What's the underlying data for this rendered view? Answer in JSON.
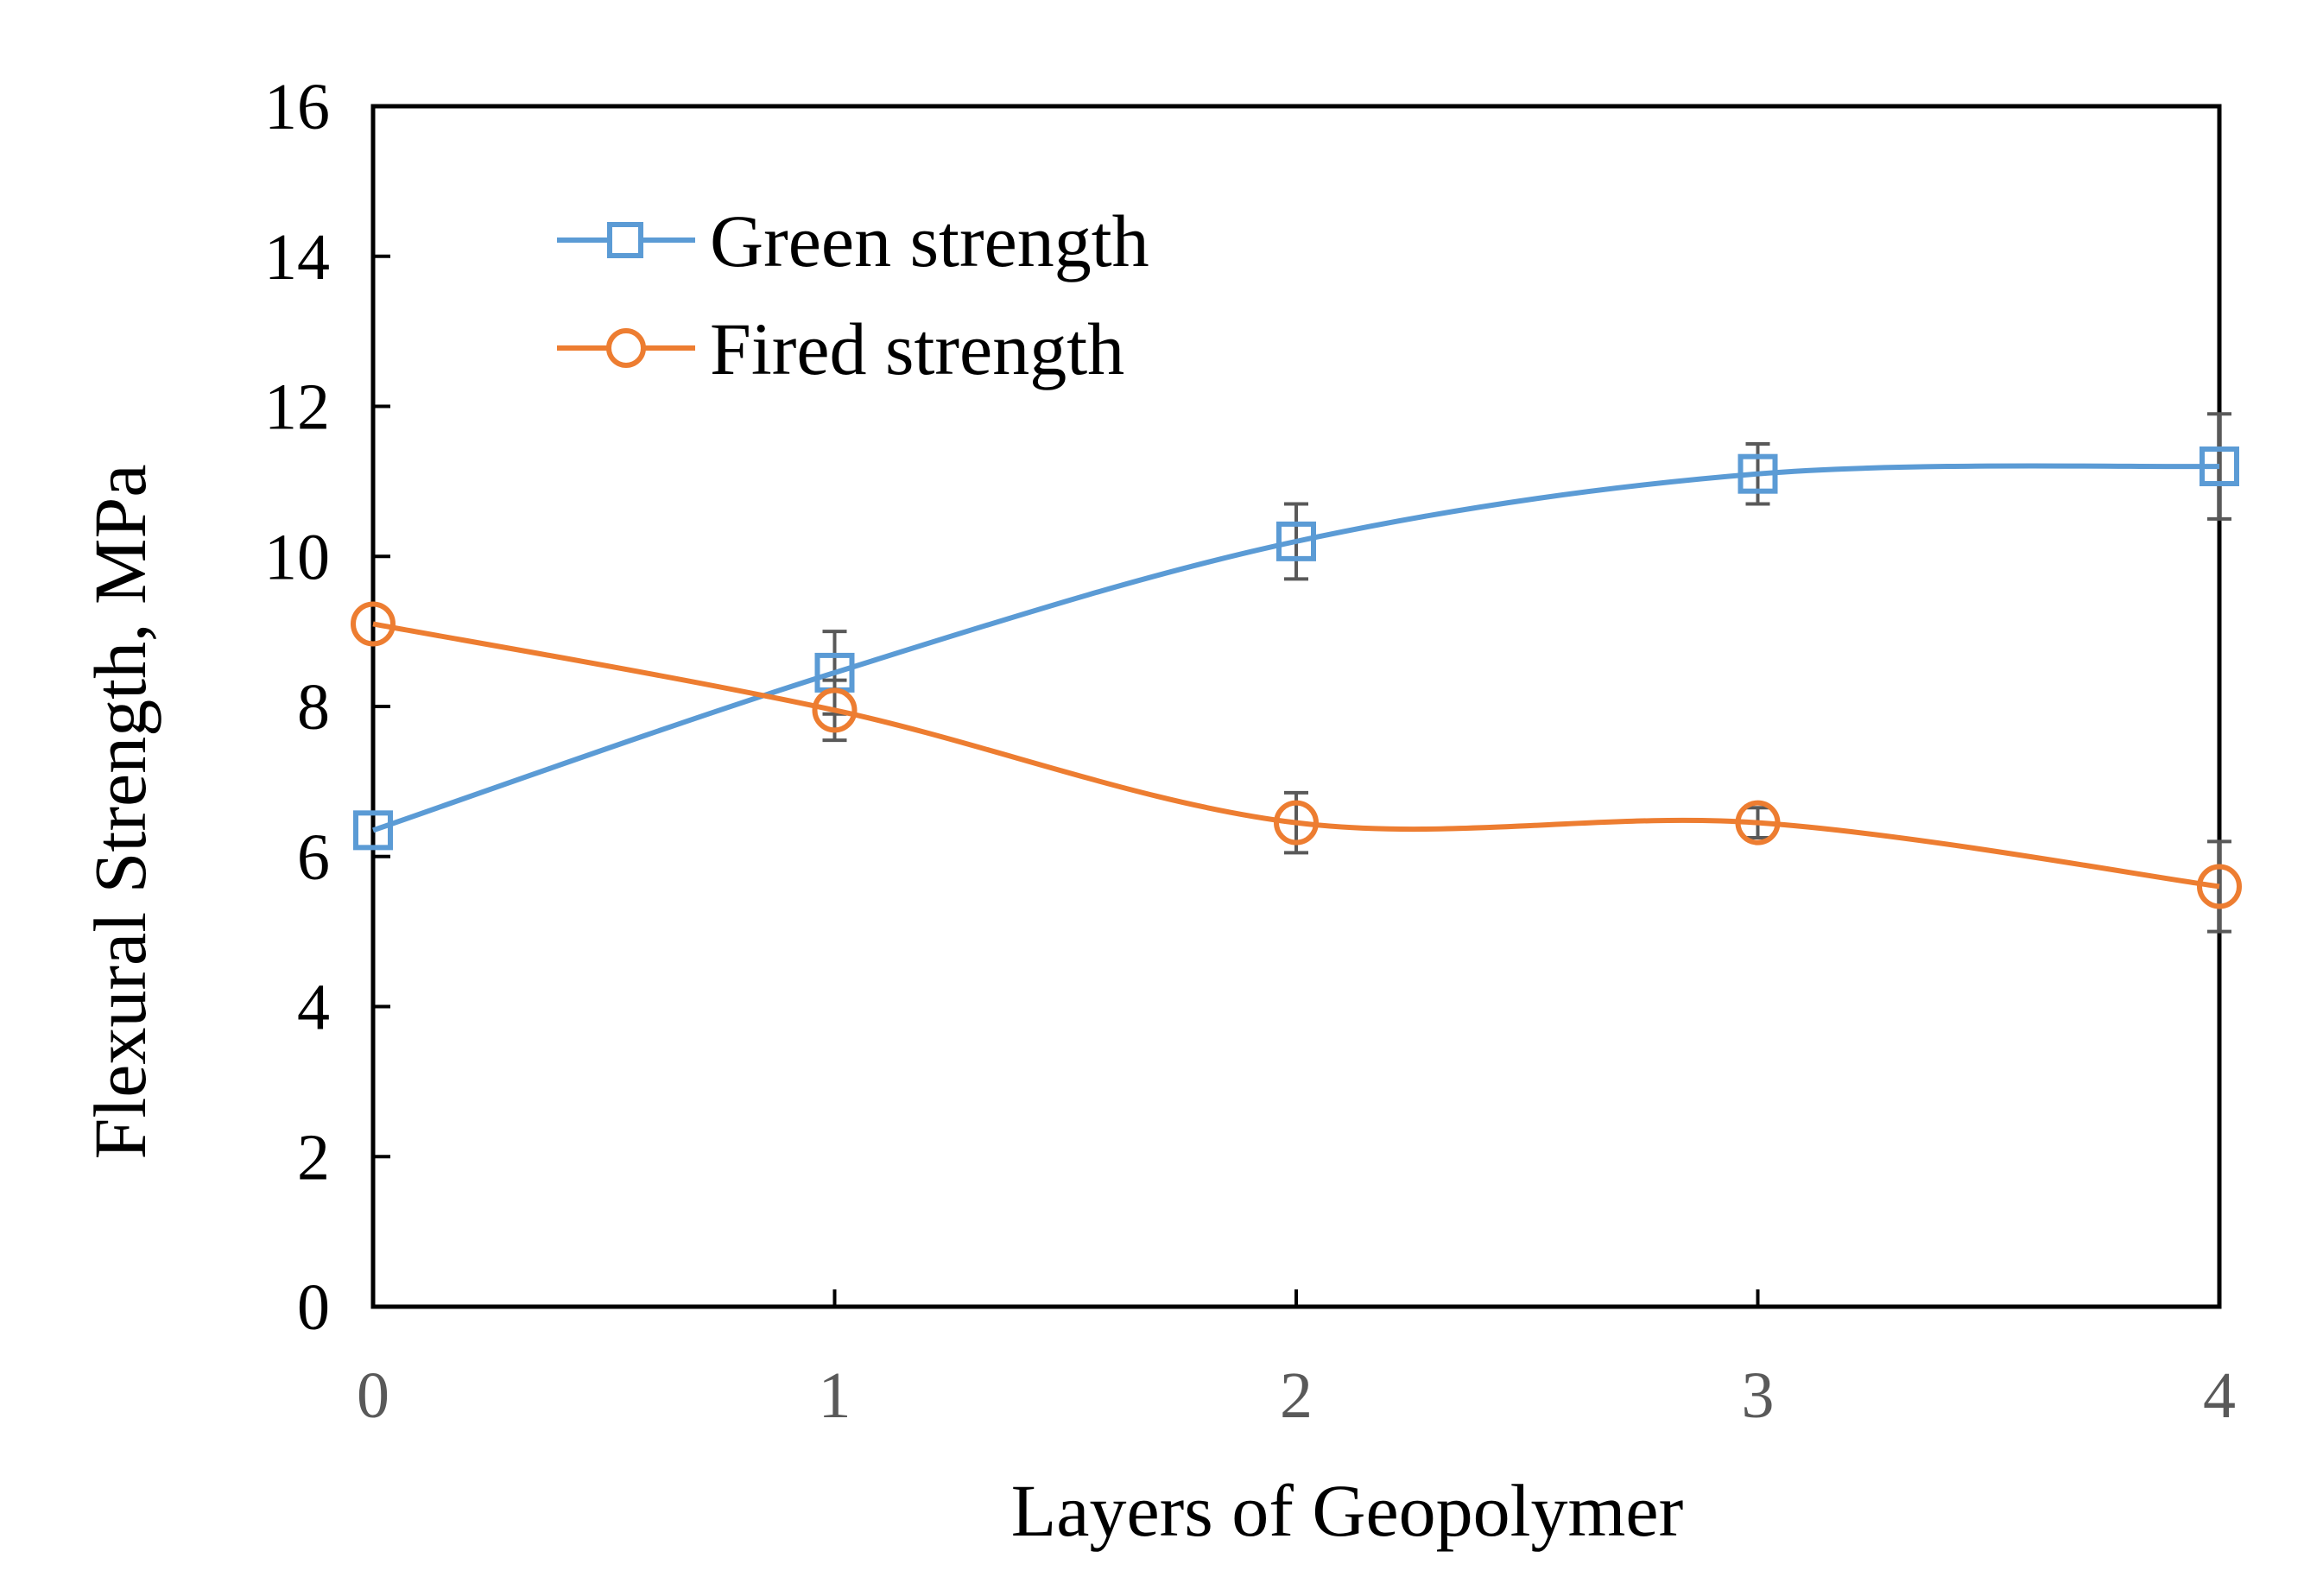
{
  "chart_data": {
    "type": "line",
    "title": "",
    "xlabel": "Layers of Geopolymer",
    "ylabel": "Flexural Strength, MPa",
    "x": [
      0,
      1,
      2,
      3,
      4
    ],
    "x_ticks": [
      "0",
      "1",
      "2",
      "3",
      "4"
    ],
    "xlim": [
      0,
      4
    ],
    "y_ticks": [
      "0",
      "2",
      "4",
      "6",
      "8",
      "10",
      "12",
      "14",
      "16"
    ],
    "ylim": [
      0,
      16
    ],
    "grid": false,
    "legend_position": "top-left",
    "smooth": true,
    "series": [
      {
        "name": "Green strength",
        "marker": "square",
        "color": "#5b9bd5",
        "values": [
          6.35,
          8.45,
          10.2,
          11.1,
          11.2
        ],
        "error": [
          0.0,
          0.55,
          0.5,
          0.4,
          0.7
        ]
      },
      {
        "name": "Fired strength",
        "marker": "circle",
        "color": "#ed7d31",
        "values": [
          9.1,
          7.95,
          6.45,
          6.45,
          5.6
        ],
        "error": [
          0.0,
          0.4,
          0.4,
          0.2,
          0.6
        ]
      }
    ],
    "error_bar_color": "#595959",
    "axis_color": "#000000"
  }
}
